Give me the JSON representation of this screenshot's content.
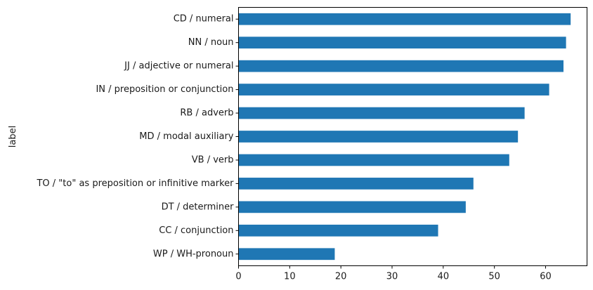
{
  "chart_data": {
    "type": "bar",
    "orientation": "horizontal",
    "categories": [
      "CD / numeral",
      "NN / noun",
      "JJ / adjective or numeral",
      "IN / preposition or conjunction",
      "RB / adverb",
      "MD / modal auxiliary",
      "VB / verb",
      "TO / \"to\" as preposition or infinitive marker",
      "DT / determiner",
      "CC / conjunction",
      "WP / WH-pronoun"
    ],
    "values": [
      64.9,
      64.0,
      63.5,
      60.7,
      55.9,
      54.6,
      52.9,
      45.9,
      44.4,
      39.0,
      18.8
    ],
    "xlabel": "",
    "ylabel": "label",
    "xlim": [
      0,
      68.1
    ],
    "xticks": [
      0,
      10,
      20,
      30,
      40,
      50,
      60
    ],
    "grid": false,
    "legend": "none",
    "bar_color": "#1f77b4"
  }
}
